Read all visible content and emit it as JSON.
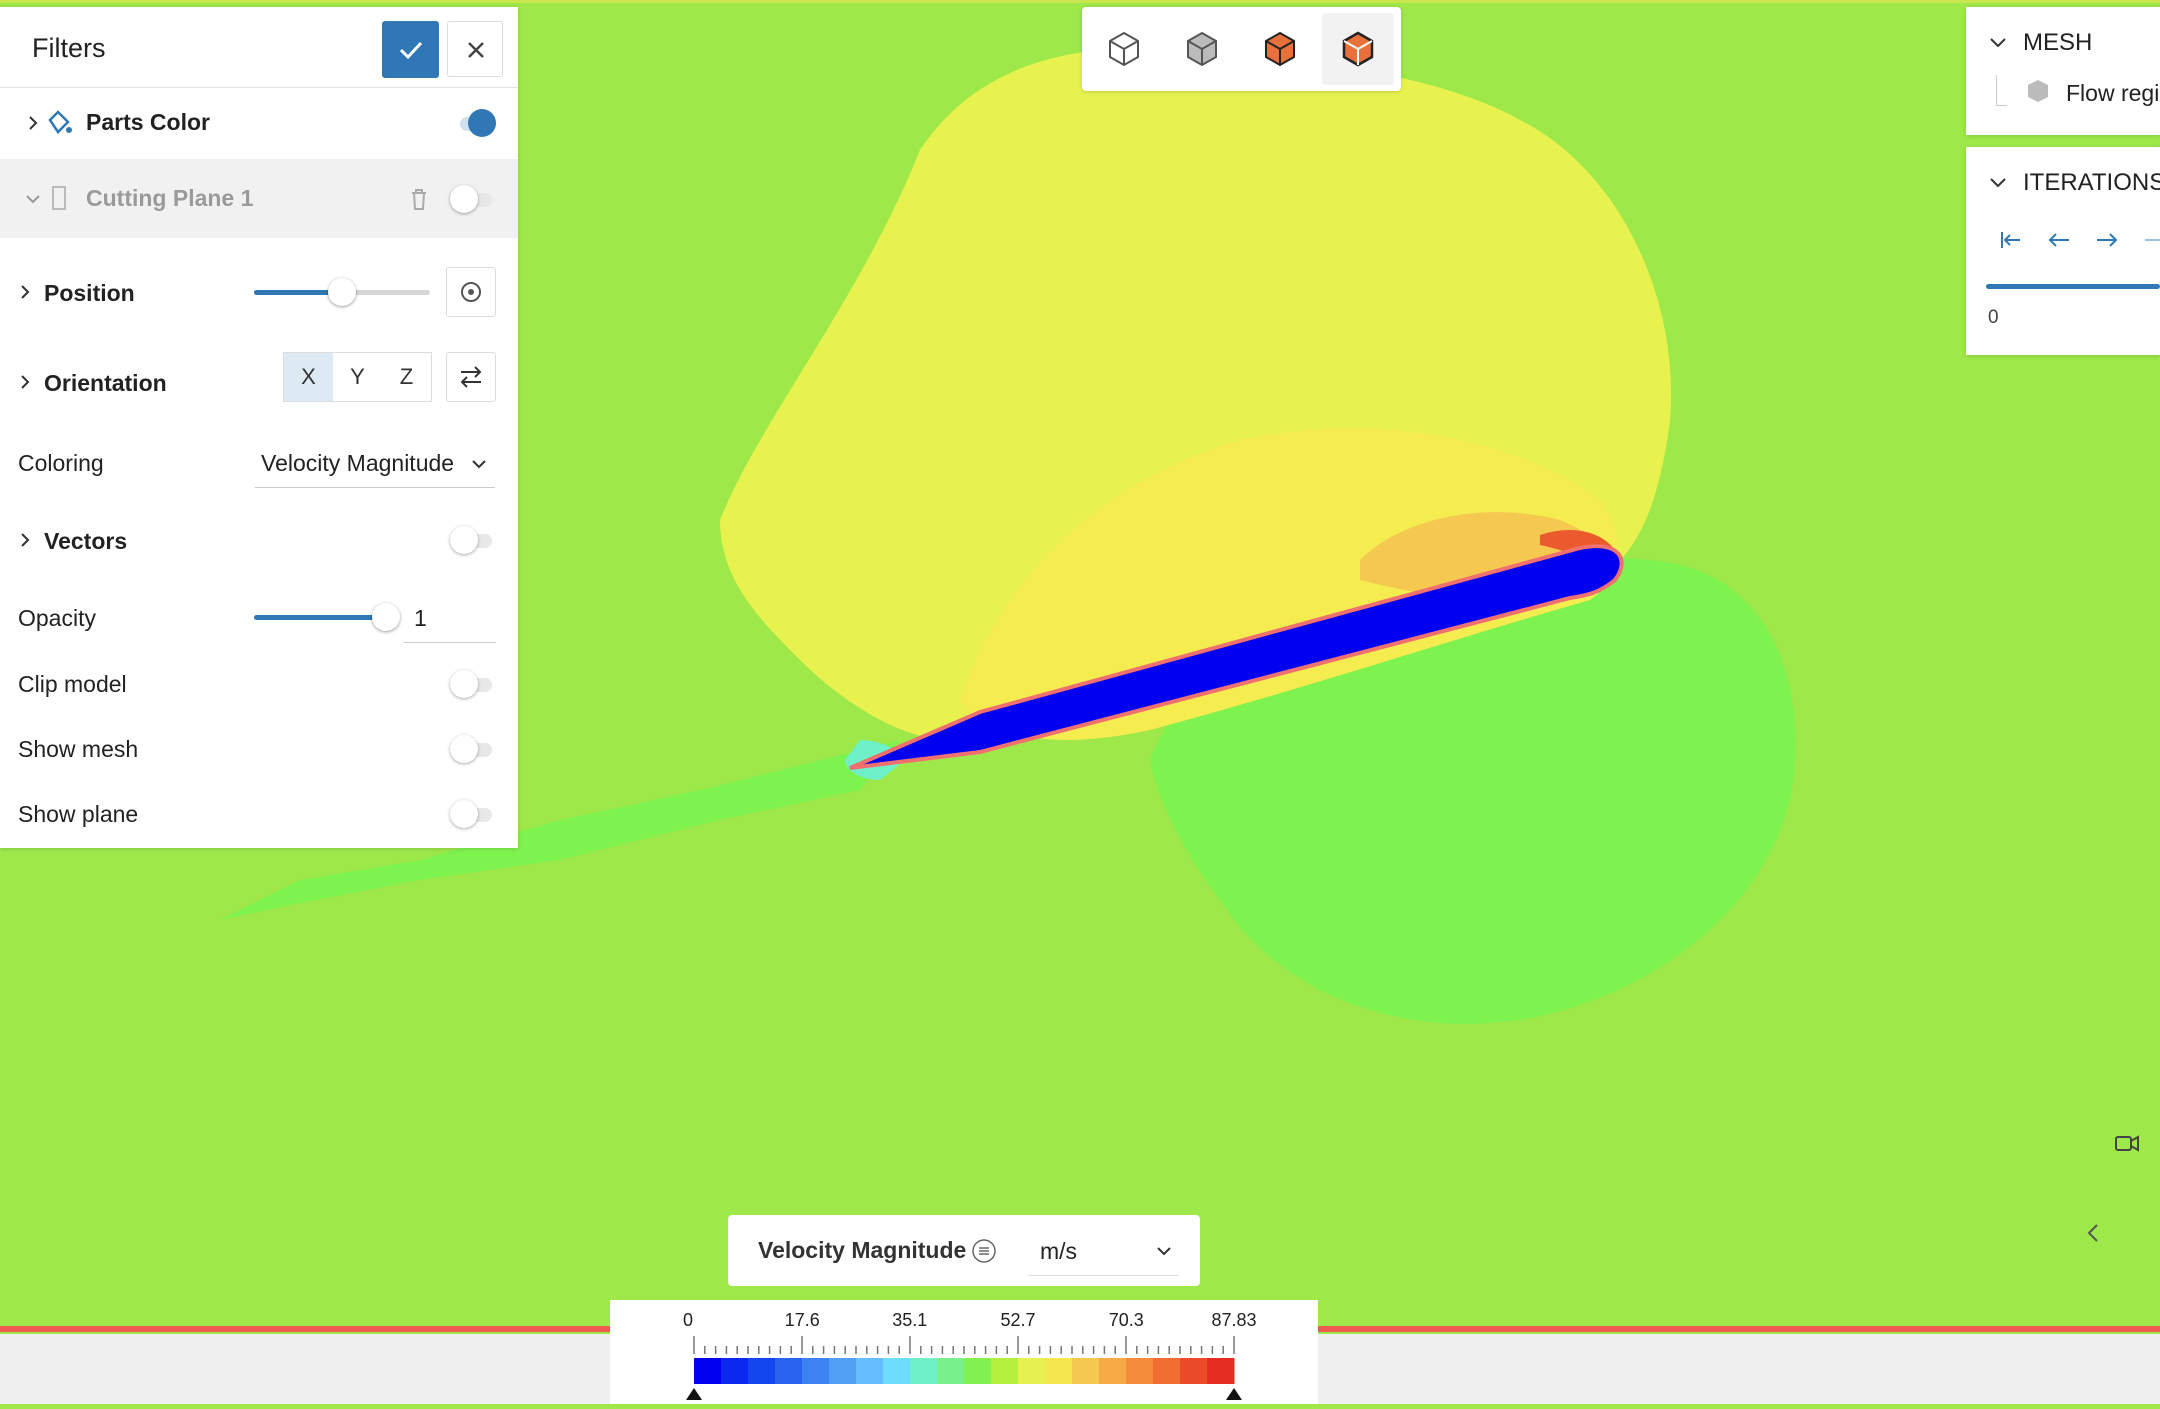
{
  "filters": {
    "title": "Filters",
    "parts_color": {
      "label": "Parts Color",
      "enabled": true
    },
    "cutting_plane": {
      "label": "Cutting Plane 1",
      "enabled": false
    },
    "position": {
      "label": "Position",
      "value_fraction": 0.5
    },
    "orientation": {
      "label": "Orientation",
      "axes": [
        "X",
        "Y",
        "Z"
      ],
      "selected": "X"
    },
    "coloring": {
      "label": "Coloring",
      "value": "Velocity Magnitude"
    },
    "vectors": {
      "label": "Vectors",
      "enabled": false
    },
    "opacity": {
      "label": "Opacity",
      "value": "1",
      "value_fraction": 1.0
    },
    "clip_model": {
      "label": "Clip model",
      "enabled": false
    },
    "show_mesh": {
      "label": "Show mesh",
      "enabled": false
    },
    "show_plane": {
      "label": "Show plane",
      "enabled": false
    }
  },
  "mesh_panel": {
    "title": "MESH",
    "item": "Flow regi"
  },
  "iterations_panel": {
    "title": "ITERATIONS",
    "value": "0"
  },
  "legend": {
    "quantity": "Velocity Magnitude",
    "unit": "m/s",
    "ticks": [
      "0",
      "17.6",
      "35.1",
      "52.7",
      "70.3",
      "87.83"
    ],
    "colors": [
      "#0000f0",
      "#0a28f0",
      "#1446f0",
      "#2864f0",
      "#3c82f0",
      "#50a0f5",
      "#64beff",
      "#6edcff",
      "#6ef0c8",
      "#78f08c",
      "#82f050",
      "#b4f03c",
      "#e6f050",
      "#f5e650",
      "#f5c850",
      "#f5aa46",
      "#f58c3c",
      "#f06e32",
      "#eb4b28",
      "#e62d23"
    ]
  },
  "theme": {
    "accent": "#2f78b5",
    "background": "#9ee84a"
  }
}
